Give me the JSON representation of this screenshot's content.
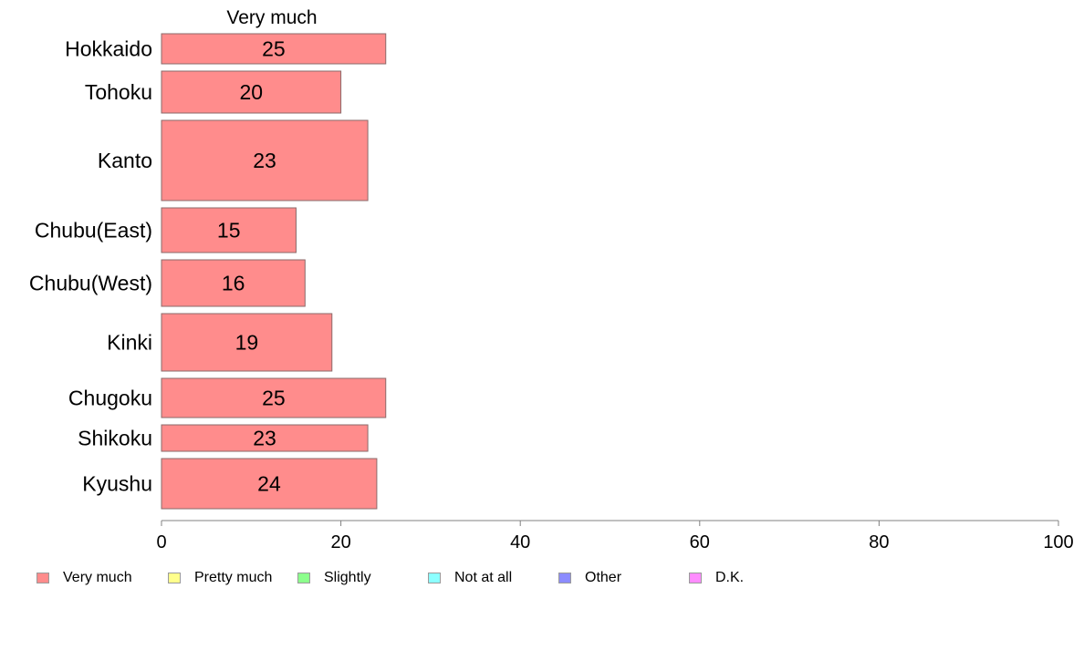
{
  "chart_data": {
    "type": "bar",
    "orientation": "horizontal",
    "title": "Very much",
    "categories": [
      "Hokkaido",
      "Tohoku",
      "Kanto",
      "Chubu(East)",
      "Chubu(West)",
      "Kinki",
      "Chugoku",
      "Shikoku",
      "Kyushu"
    ],
    "series": [
      {
        "name": "Very much",
        "values": [
          25,
          20,
          23,
          15,
          16,
          19,
          25,
          23,
          24
        ],
        "color": "#FF8C8C"
      }
    ],
    "xlim": [
      0,
      100
    ],
    "xticks": [
      0,
      20,
      40,
      60,
      80,
      100
    ],
    "grid": false,
    "legend": {
      "position": "bottom",
      "entries": [
        {
          "name": "Very much",
          "color": "#FF8C8C"
        },
        {
          "name": "Pretty much",
          "color": "#FFFF8C"
        },
        {
          "name": "Slightly",
          "color": "#8CFF8C"
        },
        {
          "name": "Not at all",
          "color": "#8CFFFF"
        },
        {
          "name": "Other",
          "color": "#8C8CFF"
        },
        {
          "name": "D.K.",
          "color": "#FF8CFF"
        }
      ]
    }
  }
}
